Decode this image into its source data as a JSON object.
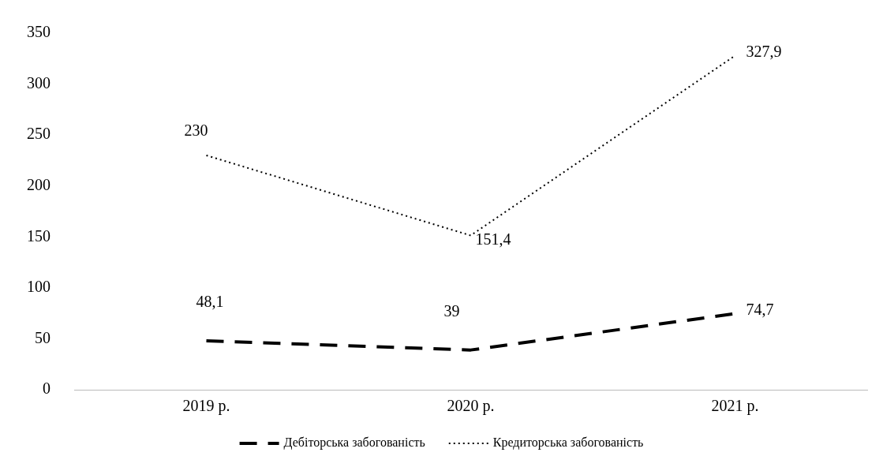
{
  "chart_data": {
    "type": "line",
    "categories": [
      "2019 р.",
      "2020 р.",
      "2021 р."
    ],
    "series": [
      {
        "name": "Дебіторська забогованість",
        "color": "#000000",
        "line_style": "dashed",
        "values": [
          48.1,
          39,
          74.7
        ],
        "value_labels": [
          "48,1",
          "39",
          "74,7"
        ]
      },
      {
        "name": "Кредиторська забогованість",
        "color": "#000000",
        "line_style": "dotted",
        "values": [
          230,
          151.4,
          327.9
        ],
        "value_labels": [
          "230",
          "151,4",
          "327,9"
        ]
      }
    ],
    "ylim": [
      0,
      350
    ],
    "yticks": [
      0,
      50,
      100,
      150,
      200,
      250,
      300,
      350
    ],
    "grid": false,
    "legend": "bottom",
    "marker": "none"
  }
}
